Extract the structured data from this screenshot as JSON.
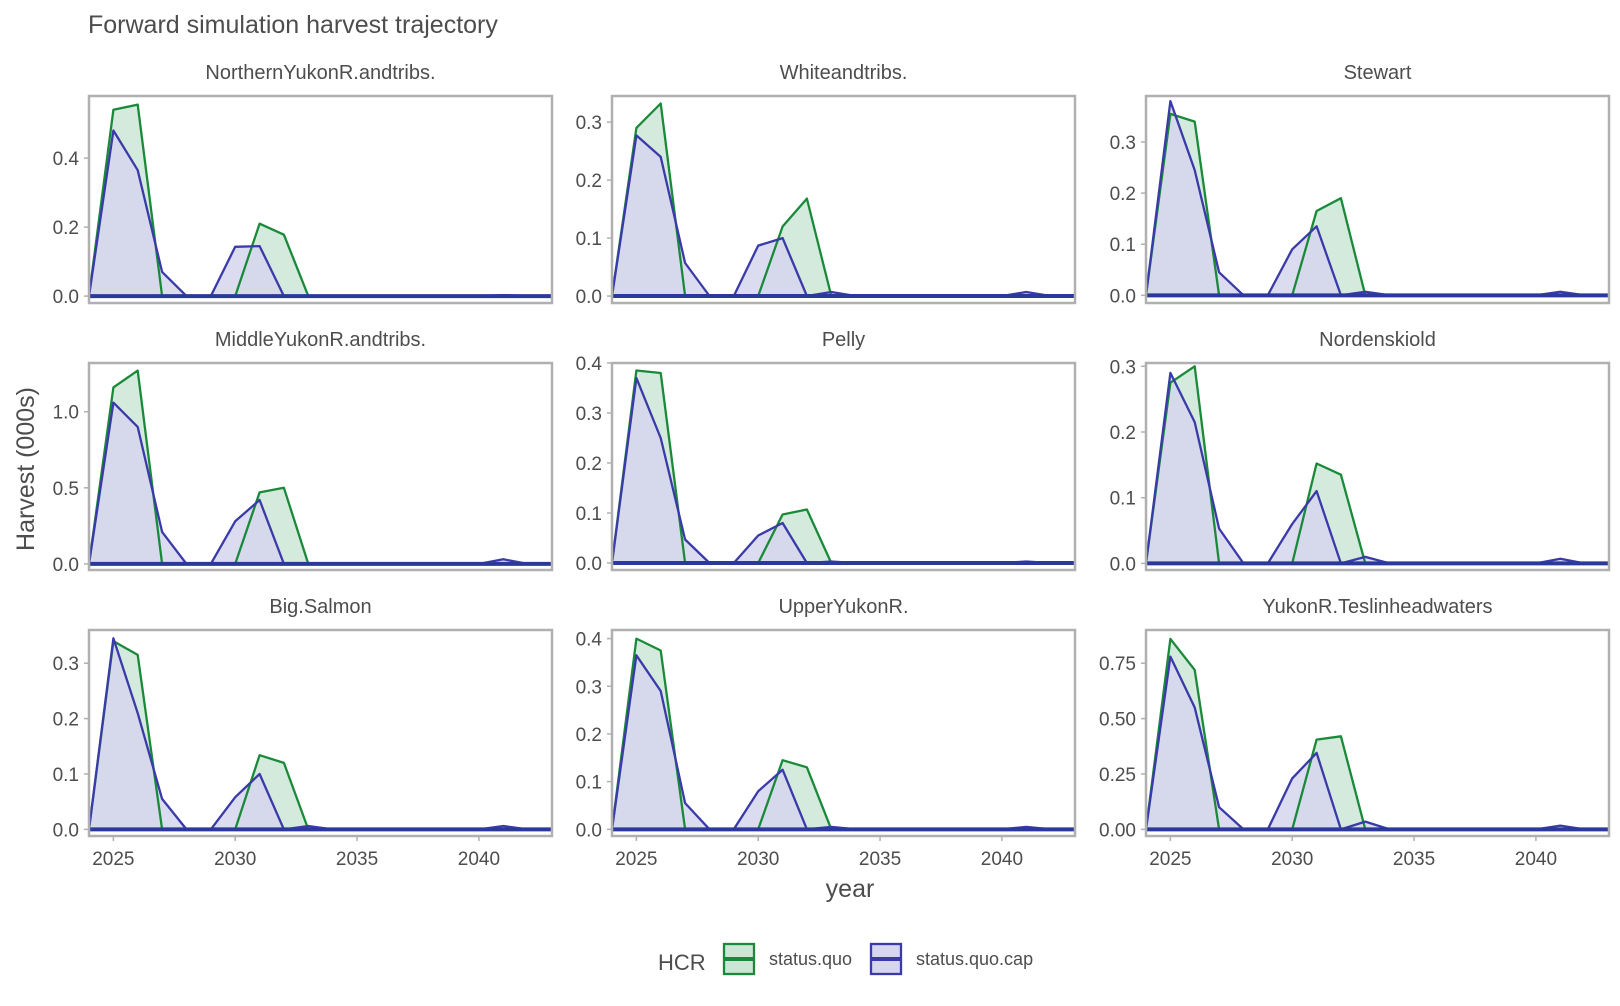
{
  "chart_data": {
    "type": "area",
    "title": "Forward simulation harvest trajectory",
    "xlabel": "year",
    "ylabel": "Harvest (000s)",
    "xlim": [
      2024,
      2043
    ],
    "x_ticks": [
      2025,
      2030,
      2035,
      2040
    ],
    "years": [
      2024,
      2025,
      2026,
      2027,
      2028,
      2029,
      2030,
      2031,
      2032,
      2033,
      2034,
      2035,
      2036,
      2037,
      2038,
      2039,
      2040,
      2041,
      2042,
      2043
    ],
    "legend": {
      "title": "HCR",
      "position": "bottom",
      "entries": [
        {
          "label": "status.quo",
          "color": "#1a8a3a",
          "fill": "#cce6d6"
        },
        {
          "label": "status.quo.cap",
          "color": "#3a3aa8",
          "fill": "#d6d6ee"
        }
      ]
    },
    "grid": false,
    "panels": [
      {
        "title": "NorthernYukonR.andtribs.",
        "ylim": [
          -0.02,
          0.58
        ],
        "yticks": [
          0.0,
          0.2,
          0.4
        ],
        "ytick_labels": [
          "0.0",
          "0.2",
          "0.4"
        ],
        "series": [
          {
            "name": "status.quo",
            "values": [
              0,
              0.54,
              0.555,
              0,
              0,
              0,
              0,
              0.21,
              0.178,
              0,
              0,
              0,
              0,
              0,
              0,
              0,
              0,
              0,
              0,
              0
            ]
          },
          {
            "name": "status.quo.cap",
            "values": [
              0,
              0.48,
              0.365,
              0.07,
              0,
              0,
              0.143,
              0.145,
              0,
              0,
              0,
              0,
              0,
              0,
              0,
              0,
              0,
              0.003,
              0,
              0
            ]
          }
        ]
      },
      {
        "title": "Whiteandtribs.",
        "ylim": [
          -0.012,
          0.345
        ],
        "yticks": [
          0.0,
          0.1,
          0.2,
          0.3
        ],
        "ytick_labels": [
          "0.0",
          "0.1",
          "0.2",
          "0.3"
        ],
        "series": [
          {
            "name": "status.quo",
            "values": [
              0,
              0.29,
              0.332,
              0,
              0,
              0,
              0,
              0.12,
              0.168,
              0,
              0,
              0,
              0,
              0,
              0,
              0,
              0,
              0,
              0,
              0
            ]
          },
          {
            "name": "status.quo.cap",
            "values": [
              0,
              0.277,
              0.24,
              0.057,
              0,
              0,
              0.087,
              0.1,
              0,
              0.007,
              0,
              0,
              0,
              0,
              0,
              0,
              0,
              0.007,
              0,
              0
            ]
          }
        ]
      },
      {
        "title": "Stewart",
        "ylim": [
          -0.015,
          0.39
        ],
        "yticks": [
          0.0,
          0.1,
          0.2,
          0.3
        ],
        "ytick_labels": [
          "0.0",
          "0.1",
          "0.2",
          "0.3"
        ],
        "series": [
          {
            "name": "status.quo",
            "values": [
              0,
              0.355,
              0.34,
              0,
              0,
              0,
              0,
              0.165,
              0.19,
              0,
              0,
              0,
              0,
              0,
              0,
              0,
              0,
              0,
              0,
              0
            ]
          },
          {
            "name": "status.quo.cap",
            "values": [
              0,
              0.38,
              0.245,
              0.045,
              0,
              0,
              0.09,
              0.135,
              0,
              0.007,
              0,
              0,
              0,
              0,
              0,
              0,
              0,
              0.007,
              0,
              0
            ]
          }
        ]
      },
      {
        "title": "MiddleYukonR.andtribs.",
        "ylim": [
          -0.04,
          1.32
        ],
        "yticks": [
          0.0,
          0.5,
          1.0
        ],
        "ytick_labels": [
          "0.0",
          "0.5",
          "1.0"
        ],
        "series": [
          {
            "name": "status.quo",
            "values": [
              0,
              1.16,
              1.27,
              0,
              0,
              0,
              0,
              0.47,
              0.5,
              0,
              0,
              0,
              0,
              0,
              0,
              0,
              0,
              0,
              0,
              0
            ]
          },
          {
            "name": "status.quo.cap",
            "values": [
              0,
              1.06,
              0.9,
              0.21,
              0,
              0,
              0.28,
              0.42,
              0,
              0.005,
              0,
              0,
              0,
              0,
              0,
              0,
              0,
              0.03,
              0,
              0
            ]
          }
        ]
      },
      {
        "title": "Pelly",
        "ylim": [
          -0.014,
          0.4
        ],
        "yticks": [
          0.0,
          0.1,
          0.2,
          0.3,
          0.4
        ],
        "ytick_labels": [
          "0.0",
          "0.1",
          "0.2",
          "0.3",
          "0.4"
        ],
        "series": [
          {
            "name": "status.quo",
            "values": [
              0,
              0.385,
              0.38,
              0,
              0,
              0,
              0,
              0.097,
              0.107,
              0,
              0,
              0,
              0,
              0,
              0,
              0,
              0,
              0,
              0,
              0
            ]
          },
          {
            "name": "status.quo.cap",
            "values": [
              0,
              0.37,
              0.25,
              0.047,
              0,
              0,
              0.055,
              0.08,
              0,
              0.003,
              0,
              0,
              0,
              0,
              0,
              0,
              0,
              0.003,
              0,
              0
            ]
          }
        ]
      },
      {
        "title": "Nordenskiold",
        "ylim": [
          -0.01,
          0.305
        ],
        "yticks": [
          0.0,
          0.1,
          0.2,
          0.3
        ],
        "ytick_labels": [
          "0.0",
          "0.1",
          "0.2",
          "0.3"
        ],
        "series": [
          {
            "name": "status.quo",
            "values": [
              0,
              0.275,
              0.3,
              0,
              0,
              0,
              0,
              0.152,
              0.135,
              0,
              0,
              0,
              0,
              0,
              0,
              0,
              0,
              0,
              0,
              0
            ]
          },
          {
            "name": "status.quo.cap",
            "values": [
              0,
              0.29,
              0.215,
              0.053,
              0,
              0,
              0.06,
              0.11,
              0,
              0.01,
              0,
              0,
              0,
              0,
              0,
              0,
              0,
              0.007,
              0,
              0
            ]
          }
        ]
      },
      {
        "title": "Big.Salmon",
        "ylim": [
          -0.012,
          0.36
        ],
        "yticks": [
          0.0,
          0.1,
          0.2,
          0.3
        ],
        "ytick_labels": [
          "0.0",
          "0.1",
          "0.2",
          "0.3"
        ],
        "series": [
          {
            "name": "status.quo",
            "values": [
              0,
              0.34,
              0.315,
              0,
              0,
              0,
              0,
              0.134,
              0.12,
              0,
              0,
              0,
              0,
              0,
              0,
              0,
              0,
              0,
              0,
              0
            ]
          },
          {
            "name": "status.quo.cap",
            "values": [
              0,
              0.345,
              0.21,
              0.055,
              0,
              0,
              0.058,
              0.1,
              0,
              0.006,
              0,
              0,
              0,
              0,
              0,
              0,
              0,
              0.006,
              0,
              0
            ]
          }
        ]
      },
      {
        "title": "UpperYukonR.",
        "ylim": [
          -0.014,
          0.418
        ],
        "yticks": [
          0.0,
          0.1,
          0.2,
          0.3,
          0.4
        ],
        "ytick_labels": [
          "0.0",
          "0.1",
          "0.2",
          "0.3",
          "0.4"
        ],
        "series": [
          {
            "name": "status.quo",
            "values": [
              0,
              0.4,
              0.375,
              0,
              0,
              0,
              0,
              0.145,
              0.13,
              0,
              0,
              0,
              0,
              0,
              0,
              0,
              0,
              0,
              0,
              0
            ]
          },
          {
            "name": "status.quo.cap",
            "values": [
              0,
              0.365,
              0.29,
              0.055,
              0,
              0,
              0.08,
              0.125,
              0,
              0.005,
              0,
              0,
              0,
              0,
              0,
              0,
              0,
              0.005,
              0,
              0
            ]
          }
        ]
      },
      {
        "title": "YukonR.Teslinheadwaters",
        "ylim": [
          -0.03,
          0.9
        ],
        "yticks": [
          0.0,
          0.25,
          0.5,
          0.75
        ],
        "ytick_labels": [
          "0.00",
          "0.25",
          "0.50",
          "0.75"
        ],
        "series": [
          {
            "name": "status.quo",
            "values": [
              0,
              0.86,
              0.72,
              0,
              0,
              0,
              0,
              0.405,
              0.42,
              0,
              0,
              0,
              0,
              0,
              0,
              0,
              0,
              0,
              0,
              0
            ]
          },
          {
            "name": "status.quo.cap",
            "values": [
              0,
              0.78,
              0.55,
              0.1,
              0,
              0,
              0.23,
              0.345,
              0,
              0.035,
              0,
              0,
              0,
              0,
              0,
              0,
              0,
              0.017,
              0,
              0
            ]
          }
        ]
      }
    ]
  }
}
